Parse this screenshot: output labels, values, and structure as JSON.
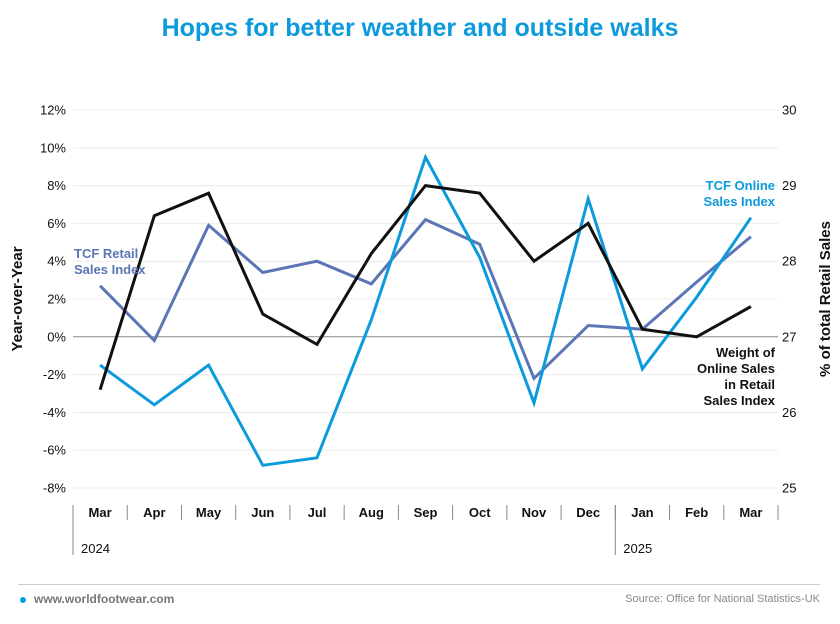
{
  "chart_data": {
    "type": "line",
    "title": "Hopes for better weather and outside walks",
    "categories": [
      "Mar",
      "Apr",
      "May",
      "Jun",
      "Jul",
      "Aug",
      "Sep",
      "Oct",
      "Nov",
      "Dec",
      "Jan",
      "Feb",
      "Mar"
    ],
    "year_labels": [
      {
        "label": "2024",
        "start_index": 0
      },
      {
        "label": "2025",
        "start_index": 10
      }
    ],
    "y_left": {
      "label": "Year-over-Year",
      "min": -8,
      "max": 12,
      "step": 2,
      "format": "percent",
      "ticks": [
        "-8%",
        "-6%",
        "-4%",
        "-2%",
        "0%",
        "2%",
        "4%",
        "6%",
        "8%",
        "10%",
        "12%"
      ]
    },
    "y_right": {
      "label": "% of total Retail Sales",
      "min": 25,
      "max": 30,
      "step": 1,
      "ticks": [
        "25",
        "26",
        "27",
        "28",
        "29",
        "30"
      ]
    },
    "series": [
      {
        "name": "TCF Retail Sales Index",
        "axis": "left",
        "color": "#5b75b5",
        "values": [
          2.7,
          -0.2,
          5.9,
          3.4,
          4.0,
          2.8,
          6.2,
          4.9,
          -2.2,
          0.6,
          0.4,
          2.9,
          5.3
        ]
      },
      {
        "name": "TCF Online Sales Index",
        "axis": "left",
        "color": "#0b9bdc",
        "values": [
          -1.5,
          -3.6,
          -1.5,
          -6.8,
          -6.4,
          0.9,
          9.5,
          4.2,
          -3.5,
          7.3,
          -1.7,
          2.1,
          6.3
        ]
      },
      {
        "name": "Weight of Online Sales in Retail Sales Index",
        "axis": "right",
        "color": "#111111",
        "values": [
          26.3,
          28.6,
          28.9,
          27.3,
          26.9,
          28.1,
          29.0,
          28.9,
          28.0,
          28.5,
          27.1,
          27.0,
          27.4
        ]
      }
    ],
    "series_labels": [
      {
        "lines": [
          "TCF Retail",
          "Sales Index"
        ],
        "color": "#5b75b5"
      },
      {
        "lines": [
          "TCF Online",
          "Sales Index"
        ],
        "color": "#0b9bdc"
      },
      {
        "lines": [
          "Weight of",
          "Online Sales",
          "in Retail",
          "Sales Index"
        ],
        "color": "#111111"
      }
    ],
    "grid": true,
    "zero_line": true
  },
  "footer": {
    "site": "www.worldfootwear.com",
    "source": "Source: Office for National Statistics-UK"
  }
}
